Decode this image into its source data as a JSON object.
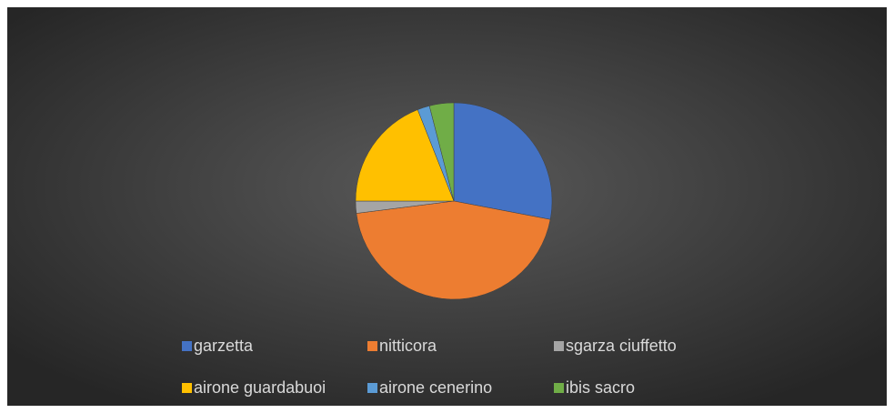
{
  "chart_data": {
    "type": "pie",
    "categories": [
      "garzetta",
      "nitticora",
      "sgarza ciuffetto",
      "airone guardabuoi",
      "airone cenerino",
      "ibis sacro"
    ],
    "values": [
      28,
      45,
      2,
      19,
      2,
      4
    ],
    "colors": [
      "#4472c4",
      "#ed7d31",
      "#a5a5a5",
      "#ffc000",
      "#5b9bd5",
      "#70ad47"
    ],
    "legend": "bottom"
  }
}
